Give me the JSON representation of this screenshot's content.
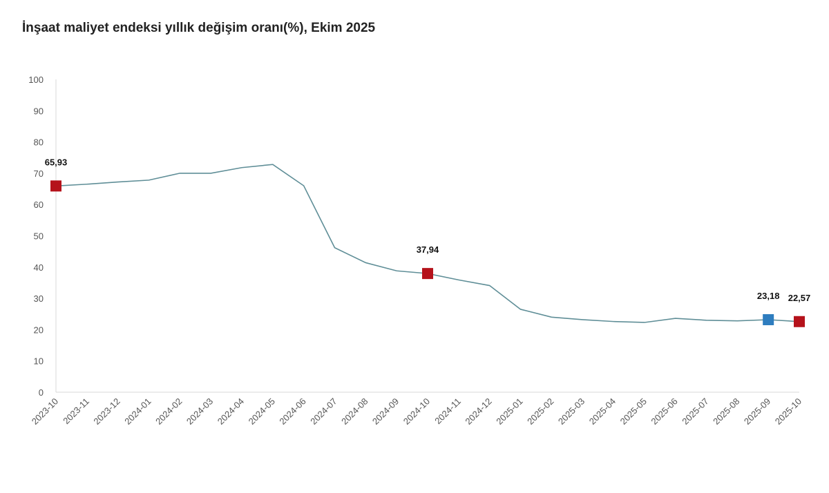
{
  "chart_data": {
    "type": "line",
    "title": "İnşaat maliyet endeksi yıllık değişim oranı(%), Ekim 2025",
    "xlabel": "",
    "ylabel": "",
    "ylim": [
      0,
      100
    ],
    "yticks": [
      0,
      10,
      20,
      30,
      40,
      50,
      60,
      70,
      80,
      90,
      100
    ],
    "grid": false,
    "categories": [
      "2023-10",
      "2023-11",
      "2023-12",
      "2024-01",
      "2024-02",
      "2024-03",
      "2024-04",
      "2024-05",
      "2024-06",
      "2024-07",
      "2024-08",
      "2024-09",
      "2024-10",
      "2024-11",
      "2024-12",
      "2025-01",
      "2025-02",
      "2025-03",
      "2025-04",
      "2025-05",
      "2025-06",
      "2025-07",
      "2025-08",
      "2025-09",
      "2025-10"
    ],
    "values": [
      65.93,
      66.5,
      67.2,
      67.8,
      70.0,
      70.0,
      71.8,
      72.8,
      66.0,
      46.2,
      41.4,
      38.8,
      37.94,
      35.9,
      34.1,
      26.5,
      24.0,
      23.2,
      22.6,
      22.3,
      23.6,
      23.0,
      22.8,
      23.18,
      22.57
    ],
    "line_color": "#5f8e97",
    "markers": [
      {
        "index": 0,
        "label": "65,93",
        "color": "#b5121b"
      },
      {
        "index": 12,
        "label": "37,94",
        "color": "#b5121b"
      },
      {
        "index": 23,
        "label": "23,18",
        "color": "#2e7dbf"
      },
      {
        "index": 24,
        "label": "22,57",
        "color": "#b5121b"
      }
    ]
  }
}
